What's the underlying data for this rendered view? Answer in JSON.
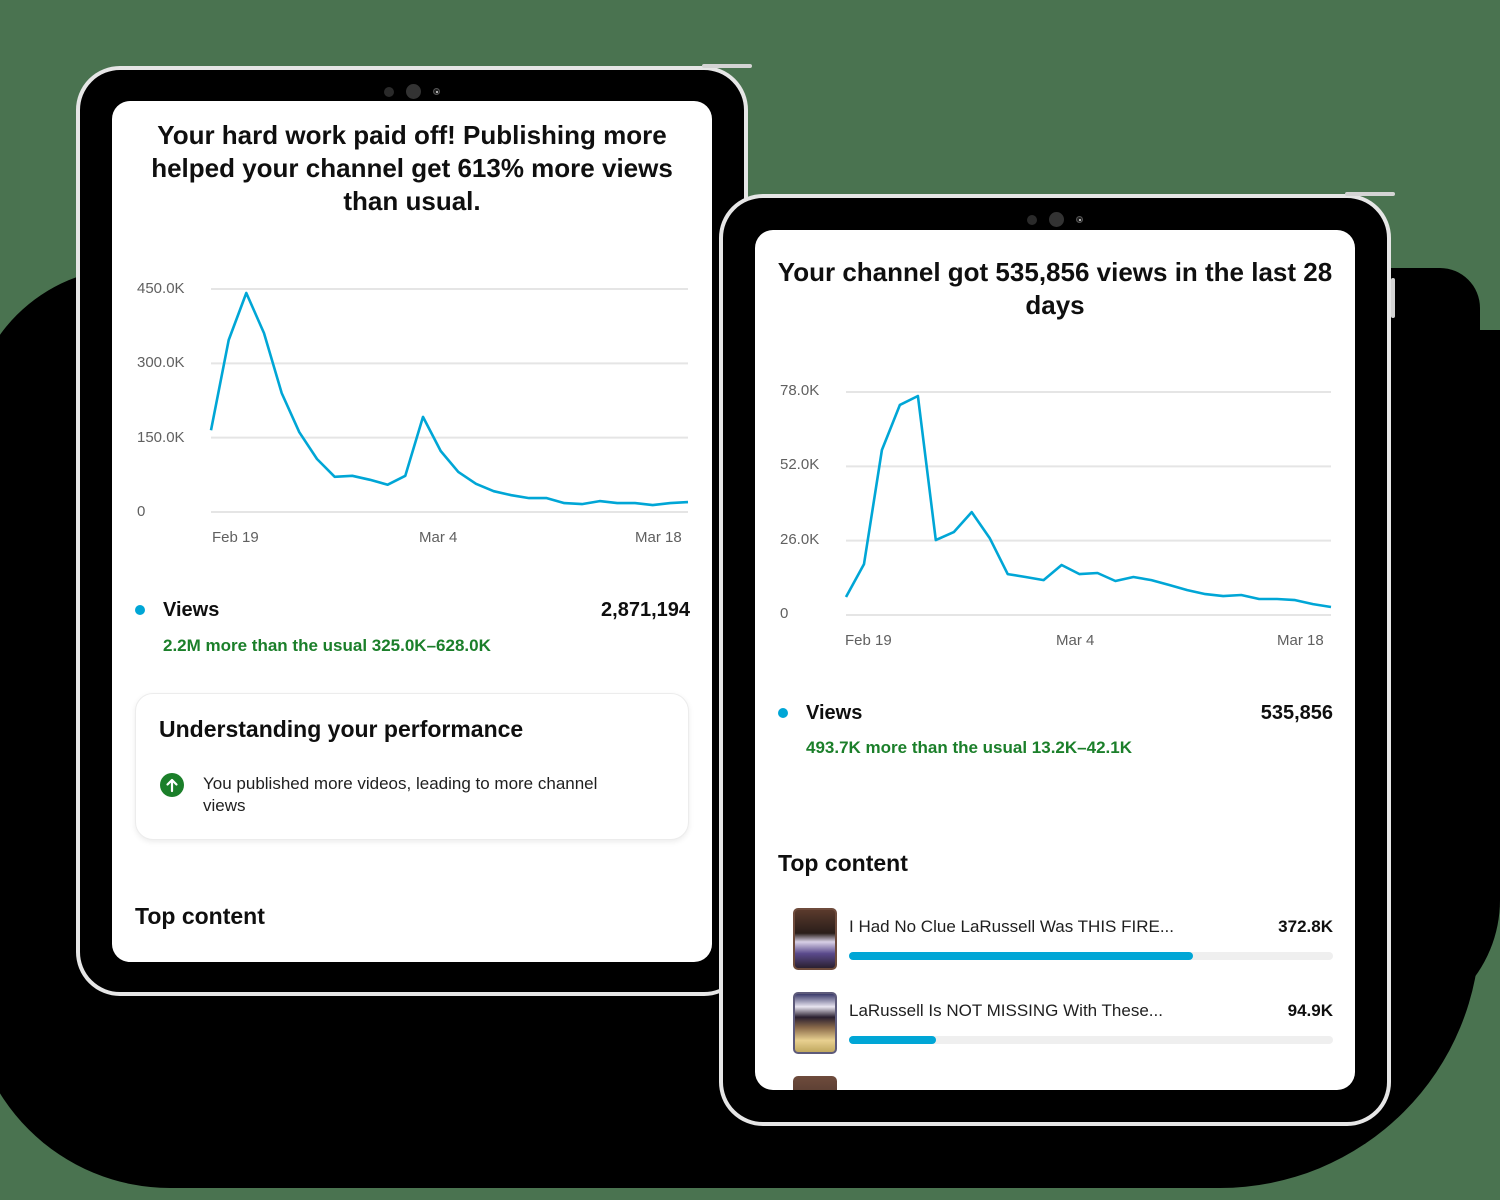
{
  "colors": {
    "background": "#4a7350",
    "accent_line": "#00a6d6",
    "positive_green": "#1b7f2a",
    "gridline": "#e5e5e5"
  },
  "tablet_left": {
    "headline": "Your hard work paid off! Publishing more helped your channel get 613% more views than usual.",
    "chart": {
      "y_ticks": [
        "450.0K",
        "300.0K",
        "150.0K",
        "0"
      ],
      "x_ticks": [
        "Feb 19",
        "Mar 4",
        "Mar 18"
      ]
    },
    "metric": {
      "label": "Views",
      "value": "2,871,194",
      "comparison": "2.2M more than the usual 325.0K–628.0K"
    },
    "insight": {
      "title": "Understanding your performance",
      "icon": "arrow-up-circle-icon",
      "text": "You published more videos, leading to more channel views"
    },
    "top_content_title": "Top content"
  },
  "tablet_right": {
    "headline": "Your channel got 535,856 views in the last 28 days",
    "chart": {
      "y_ticks": [
        "78.0K",
        "52.0K",
        "26.0K",
        "0"
      ],
      "x_ticks": [
        "Feb 19",
        "Mar 4",
        "Mar 18"
      ]
    },
    "metric": {
      "label": "Views",
      "value": "535,856",
      "comparison": "493.7K more than the usual 13.2K–42.1K"
    },
    "top_content_title": "Top content",
    "top_content": [
      {
        "title": "I Had No Clue LaRussell Was THIS FIRE...",
        "views": "372.8K",
        "bar_pct": 71
      },
      {
        "title": "LaRussell Is NOT MISSING With These...",
        "views": "94.9K",
        "bar_pct": 18
      },
      {
        "title": "",
        "views": "",
        "bar_pct": 0
      }
    ]
  },
  "chart_data": [
    {
      "type": "line",
      "title": "Channel views (left tablet)",
      "xlabel": "",
      "ylabel": "Views",
      "x_tick_labels": [
        "Feb 19",
        "Mar 4",
        "Mar 18"
      ],
      "y_tick_labels": [
        "0",
        "150.0K",
        "300.0K",
        "450.0K"
      ],
      "ylim": [
        0,
        450000
      ],
      "grid": true,
      "series": [
        {
          "name": "Views",
          "color": "#00a6d6",
          "values_k": [
            165,
            347,
            442,
            361,
            240,
            161,
            107,
            71,
            73,
            65,
            55,
            73,
            192,
            123,
            81,
            57,
            42,
            34,
            28,
            28,
            18,
            16,
            22,
            18,
            18,
            14,
            18,
            20
          ]
        }
      ]
    },
    {
      "type": "line",
      "title": "Channel views (right tablet)",
      "xlabel": "",
      "ylabel": "Views",
      "x_tick_labels": [
        "Feb 19",
        "Mar 4",
        "Mar 18"
      ],
      "y_tick_labels": [
        "0",
        "26.0K",
        "52.0K",
        "78.0K"
      ],
      "ylim": [
        0,
        78000
      ],
      "grid": true,
      "series": [
        {
          "name": "Views",
          "color": "#00a6d6",
          "values_k": [
            6.3,
            17.8,
            57.7,
            73.5,
            76.6,
            26.2,
            29.0,
            36.0,
            26.9,
            14.3,
            13.3,
            12.2,
            17.5,
            14.3,
            14.7,
            11.9,
            13.3,
            12.2,
            10.5,
            8.7,
            7.3,
            6.6,
            7.0,
            5.6,
            5.6,
            5.2,
            3.8,
            2.8
          ]
        }
      ]
    }
  ]
}
